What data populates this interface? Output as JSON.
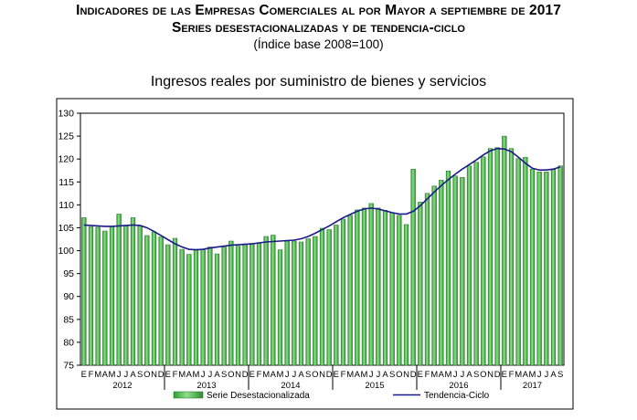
{
  "header": {
    "line1": "Indicadores de las Empresas Comerciales al por Mayor a septiembre de 2017",
    "line2": "Series desestacionalizadas y de tendencia-ciclo",
    "line3": "(Índice base 2008=100)"
  },
  "chart_data": {
    "type": "bar",
    "title": "Ingresos reales por suministro de bienes y servicios",
    "ylim": [
      75,
      130
    ],
    "yticks": [
      75,
      80,
      85,
      90,
      95,
      100,
      105,
      110,
      115,
      120,
      125,
      130
    ],
    "month_labels": [
      "E",
      "F",
      "M",
      "A",
      "M",
      "J",
      "J",
      "A",
      "S",
      "O",
      "N",
      "D"
    ],
    "years": [
      {
        "label": "2012",
        "start_index": 0,
        "months": 12
      },
      {
        "label": "2013",
        "start_index": 12,
        "months": 12
      },
      {
        "label": "2014",
        "start_index": 24,
        "months": 12
      },
      {
        "label": "2015",
        "start_index": 36,
        "months": 12
      },
      {
        "label": "2016",
        "start_index": 48,
        "months": 12
      },
      {
        "label": "2017",
        "start_index": 60,
        "months": 9
      }
    ],
    "series": [
      {
        "name": "Serie Desestacionalizada",
        "kind": "bar",
        "color": "#3cb83c",
        "values": [
          107.2,
          105.2,
          105.1,
          104.3,
          105.3,
          108.0,
          105.4,
          107.2,
          105.5,
          103.3,
          104.1,
          103.0,
          101.3,
          102.7,
          100.3,
          99.2,
          100.3,
          100.3,
          100.8,
          99.3,
          100.8,
          102.1,
          101.0,
          101.5,
          101.6,
          101.6,
          103.1,
          103.4,
          100.2,
          102.1,
          102.1,
          101.9,
          102.6,
          103.1,
          104.9,
          104.6,
          105.6,
          106.9,
          107.7,
          108.9,
          109.3,
          110.3,
          109.3,
          108.8,
          108.3,
          107.7,
          105.7,
          117.8,
          110.6,
          112.5,
          114.1,
          115.4,
          117.4,
          116.3,
          116.0,
          118.5,
          119.3,
          120.5,
          122.3,
          122.5,
          125.0,
          122.3,
          120.1,
          120.4,
          117.8,
          117.2,
          117.2,
          117.7,
          118.5
        ]
      },
      {
        "name": "Tendencia-Ciclo",
        "kind": "line",
        "color": "#1a1a8c",
        "values": [
          105.6,
          105.5,
          105.4,
          105.3,
          105.3,
          105.4,
          105.5,
          105.6,
          105.5,
          105.0,
          104.2,
          103.3,
          102.4,
          101.5,
          100.8,
          100.3,
          100.2,
          100.3,
          100.6,
          100.8,
          101.0,
          101.2,
          101.3,
          101.4,
          101.5,
          101.7,
          101.9,
          102.0,
          102.1,
          102.2,
          102.3,
          102.6,
          103.1,
          103.8,
          104.6,
          105.4,
          106.3,
          107.2,
          107.9,
          108.6,
          109.1,
          109.3,
          109.1,
          108.7,
          108.3,
          108.0,
          108.0,
          108.6,
          109.8,
          111.3,
          112.8,
          114.2,
          115.5,
          116.7,
          117.8,
          118.8,
          119.8,
          120.9,
          121.8,
          122.3,
          122.2,
          121.6,
          120.4,
          119.1,
          118.0,
          117.6,
          117.6,
          117.8,
          118.3
        ]
      }
    ],
    "grid": false,
    "legend_position": "bottom"
  }
}
